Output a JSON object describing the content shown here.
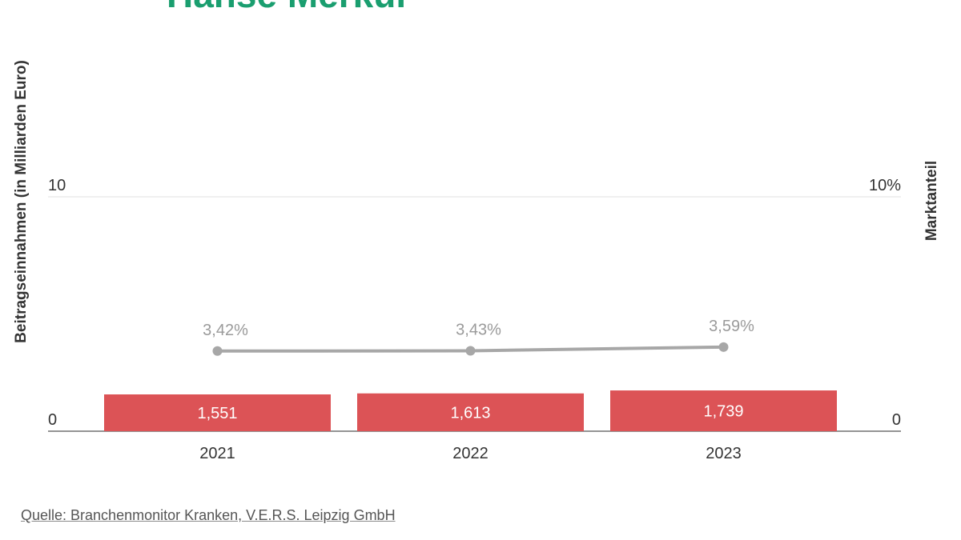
{
  "header": {
    "title": "Hanse Merkur",
    "title_color": "#1a9e6f"
  },
  "chart_data": {
    "type": "bar",
    "categories": [
      "2021",
      "2022",
      "2023"
    ],
    "series": [
      {
        "values": [
          1.551,
          1.613,
          1.739
        ],
        "labels": [
          "1,551",
          "1,613",
          "1,739"
        ],
        "color": "#dc5356",
        "axis": "left"
      },
      {
        "name": "Marktanteil",
        "type": "line",
        "values": [
          3.42,
          3.43,
          3.59
        ],
        "labels": [
          "3,42%",
          "3,43%",
          "3,59%"
        ],
        "color": "#a7a7a7",
        "axis": "right"
      }
    ],
    "ylabel": "Beitragseinnahmen (in Milliarden Euro)",
    "y2label": "Marktanteil",
    "ylim": [
      0,
      10
    ],
    "y2lim": [
      0,
      10
    ],
    "yticks": [
      "0",
      "10"
    ],
    "y2ticks": [
      "0",
      "10%"
    ],
    "grid": true
  },
  "footer": {
    "source": "Quelle: Branchenmonitor Kranken, V.E.R.S. Leipzig GmbH"
  }
}
